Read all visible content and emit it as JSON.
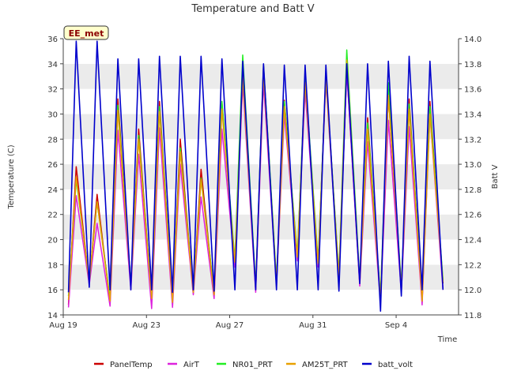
{
  "chart_data": {
    "type": "line",
    "title": "Temperature and Batt V",
    "station_tag": "EE_met",
    "xlabel": "Time",
    "ylabel_left": "Temperature (C)",
    "ylabel_right": "Batt V",
    "xlim": [
      "2023-08-19",
      "2023-09-07"
    ],
    "ylim_left": [
      14,
      36
    ],
    "ylim_right": [
      11.8,
      14.0
    ],
    "x_ticks": [
      {
        "date": "2023-08-19",
        "label": "Aug 19"
      },
      {
        "date": "2023-08-23",
        "label": "Aug 23"
      },
      {
        "date": "2023-08-27",
        "label": "Aug 27"
      },
      {
        "date": "2023-08-31",
        "label": "Aug 31"
      },
      {
        "date": "2023-09-04",
        "label": "Sep 4"
      }
    ],
    "y_ticks_left": [
      14,
      16,
      18,
      20,
      22,
      24,
      26,
      28,
      30,
      32,
      34,
      36
    ],
    "y_ticks_right": [
      "11.8",
      "12.0",
      "12.2",
      "12.4",
      "12.6",
      "12.8",
      "13.0",
      "13.2",
      "13.4",
      "13.6",
      "13.8",
      "14.0"
    ],
    "grid": "horizontal bands",
    "legend_position": "bottom",
    "series": [
      {
        "name": "PanelTemp",
        "color": "#cc0000",
        "axis": "left",
        "x": [
          "2023-08-19 06:00",
          "2023-08-19 15:00",
          "2023-08-20 06:00",
          "2023-08-20 15:00",
          "2023-08-21 06:00",
          "2023-08-21 15:00",
          "2023-08-22 06:00",
          "2023-08-22 15:00",
          "2023-08-23 06:00",
          "2023-08-23 15:00",
          "2023-08-24 06:00",
          "2023-08-24 15:00",
          "2023-08-25 06:00",
          "2023-08-25 15:00",
          "2023-08-26 06:00",
          "2023-08-26 15:00",
          "2023-08-27 06:00",
          "2023-08-27 15:00",
          "2023-08-28 06:00",
          "2023-08-28 15:00",
          "2023-08-29 06:00",
          "2023-08-29 15:00",
          "2023-08-30 06:00",
          "2023-08-30 15:00",
          "2023-08-31 06:00",
          "2023-08-31 15:00",
          "2023-09-01 06:00",
          "2023-09-01 15:00",
          "2023-09-02 06:00",
          "2023-09-02 15:00",
          "2023-09-03 06:00",
          "2023-09-03 15:00",
          "2023-09-04 06:00",
          "2023-09-04 15:00",
          "2023-09-05 06:00",
          "2023-09-05 15:00",
          "2023-09-06 06:00"
        ],
        "y": [
          14.8,
          25.8,
          16.5,
          23.6,
          15.0,
          31.2,
          16.3,
          28.8,
          15.2,
          31.0,
          15.0,
          28.0,
          15.7,
          25.6,
          15.5,
          30.9,
          18.0,
          33.9,
          16.0,
          33.8,
          16.5,
          31.1,
          18.5,
          32.8,
          18.0,
          33.1,
          17.0,
          33.5,
          16.5,
          29.7,
          15.2,
          31.5,
          16.0,
          31.2,
          15.0,
          31.0,
          16.5
        ]
      },
      {
        "name": "AirT",
        "color": "#dd22dd",
        "axis": "left",
        "x": [
          "2023-08-19 06:00",
          "2023-08-19 15:00",
          "2023-08-20 06:00",
          "2023-08-20 15:00",
          "2023-08-21 06:00",
          "2023-08-21 15:00",
          "2023-08-22 06:00",
          "2023-08-22 15:00",
          "2023-08-23 06:00",
          "2023-08-23 15:00",
          "2023-08-24 06:00",
          "2023-08-24 15:00",
          "2023-08-25 06:00",
          "2023-08-25 15:00",
          "2023-08-26 06:00",
          "2023-08-26 15:00",
          "2023-08-27 06:00",
          "2023-08-27 15:00",
          "2023-08-28 06:00",
          "2023-08-28 15:00",
          "2023-08-29 06:00",
          "2023-08-29 15:00",
          "2023-08-30 06:00",
          "2023-08-30 15:00",
          "2023-08-31 06:00",
          "2023-08-31 15:00",
          "2023-09-01 06:00",
          "2023-09-01 15:00",
          "2023-09-02 06:00",
          "2023-09-02 15:00",
          "2023-09-03 06:00",
          "2023-09-03 15:00",
          "2023-09-04 06:00",
          "2023-09-04 15:00",
          "2023-09-05 06:00",
          "2023-09-05 15:00",
          "2023-09-06 06:00"
        ],
        "y": [
          14.6,
          23.5,
          16.4,
          21.3,
          14.7,
          28.7,
          16.0,
          26.8,
          14.5,
          28.9,
          14.6,
          26.0,
          15.6,
          23.4,
          15.3,
          28.8,
          17.8,
          32.4,
          15.8,
          32.5,
          16.3,
          30.0,
          18.3,
          31.8,
          17.8,
          32.6,
          16.8,
          33.4,
          16.3,
          27.8,
          15.0,
          29.5,
          15.8,
          29.0,
          14.8,
          30.0,
          16.0
        ]
      },
      {
        "name": "NR01_PRT",
        "color": "#22ee22",
        "axis": "left",
        "x": [
          "2023-08-19 06:00",
          "2023-08-19 15:00",
          "2023-08-20 06:00",
          "2023-08-20 15:00",
          "2023-08-21 06:00",
          "2023-08-21 15:00",
          "2023-08-22 06:00",
          "2023-08-22 15:00",
          "2023-08-23 06:00",
          "2023-08-23 15:00",
          "2023-08-24 06:00",
          "2023-08-24 15:00",
          "2023-08-25 06:00",
          "2023-08-25 15:00",
          "2023-08-26 06:00",
          "2023-08-26 15:00",
          "2023-08-27 06:00",
          "2023-08-27 15:00",
          "2023-08-28 06:00",
          "2023-08-28 15:00",
          "2023-08-29 06:00",
          "2023-08-29 15:00",
          "2023-08-30 06:00",
          "2023-08-30 15:00",
          "2023-08-31 06:00",
          "2023-08-31 15:00",
          "2023-09-01 06:00",
          "2023-09-01 15:00",
          "2023-09-02 06:00",
          "2023-09-02 15:00",
          "2023-09-03 06:00",
          "2023-09-03 15:00",
          "2023-09-04 06:00",
          "2023-09-04 15:00",
          "2023-09-05 06:00",
          "2023-09-05 15:00",
          "2023-09-06 06:00"
        ],
        "y": [
          15.5,
          24.8,
          16.7,
          23.0,
          15.3,
          30.7,
          16.5,
          28.3,
          15.4,
          30.6,
          15.2,
          27.3,
          15.9,
          24.9,
          15.8,
          31.0,
          18.4,
          34.7,
          16.3,
          33.9,
          16.8,
          31.0,
          18.8,
          33.0,
          18.3,
          33.0,
          17.3,
          35.1,
          16.8,
          29.3,
          15.5,
          32.5,
          16.3,
          30.8,
          15.3,
          30.6,
          16.8
        ]
      },
      {
        "name": "AM25T_PRT",
        "color": "#e8a000",
        "axis": "left",
        "x": [
          "2023-08-19 06:00",
          "2023-08-19 15:00",
          "2023-08-20 06:00",
          "2023-08-20 15:00",
          "2023-08-21 06:00",
          "2023-08-21 15:00",
          "2023-08-22 06:00",
          "2023-08-22 15:00",
          "2023-08-23 06:00",
          "2023-08-23 15:00",
          "2023-08-24 06:00",
          "2023-08-24 15:00",
          "2023-08-25 06:00",
          "2023-08-25 15:00",
          "2023-08-26 06:00",
          "2023-08-26 15:00",
          "2023-08-27 06:00",
          "2023-08-27 15:00",
          "2023-08-28 06:00",
          "2023-08-28 15:00",
          "2023-08-29 06:00",
          "2023-08-29 15:00",
          "2023-08-30 06:00",
          "2023-08-30 15:00",
          "2023-08-31 06:00",
          "2023-08-31 15:00",
          "2023-09-01 06:00",
          "2023-09-01 15:00",
          "2023-09-02 06:00",
          "2023-09-02 15:00",
          "2023-09-03 06:00",
          "2023-09-03 15:00",
          "2023-09-04 06:00",
          "2023-09-04 15:00",
          "2023-09-05 06:00",
          "2023-09-05 15:00",
          "2023-09-06 06:00"
        ],
        "y": [
          15.2,
          25.0,
          16.6,
          23.0,
          15.1,
          30.3,
          16.4,
          28.0,
          15.3,
          30.2,
          15.0,
          27.0,
          15.8,
          24.8,
          15.6,
          30.4,
          18.2,
          33.0,
          16.2,
          33.3,
          16.6,
          30.6,
          18.6,
          32.5,
          18.1,
          32.8,
          17.1,
          34.3,
          16.6,
          28.8,
          15.3,
          31.5,
          16.2,
          30.4,
          15.1,
          30.0,
          16.6
        ]
      },
      {
        "name": "batt_volt",
        "color": "#0000cc",
        "axis": "right",
        "x": [
          "2023-08-19 06:00",
          "2023-08-19 15:00",
          "2023-08-20 06:00",
          "2023-08-20 15:00",
          "2023-08-21 06:00",
          "2023-08-21 15:00",
          "2023-08-22 06:00",
          "2023-08-22 15:00",
          "2023-08-23 06:00",
          "2023-08-23 15:00",
          "2023-08-24 06:00",
          "2023-08-24 15:00",
          "2023-08-25 06:00",
          "2023-08-25 15:00",
          "2023-08-26 06:00",
          "2023-08-26 15:00",
          "2023-08-27 06:00",
          "2023-08-27 15:00",
          "2023-08-28 06:00",
          "2023-08-28 15:00",
          "2023-08-29 06:00",
          "2023-08-29 15:00",
          "2023-08-30 06:00",
          "2023-08-30 15:00",
          "2023-08-31 06:00",
          "2023-08-31 15:00",
          "2023-09-01 06:00",
          "2023-09-01 15:00",
          "2023-09-02 06:00",
          "2023-09-02 15:00",
          "2023-09-03 06:00",
          "2023-09-03 15:00",
          "2023-09-04 06:00",
          "2023-09-04 15:00",
          "2023-09-05 06:00",
          "2023-09-05 15:00",
          "2023-09-06 06:00"
        ],
        "y": [
          11.98,
          13.98,
          12.02,
          13.98,
          12.0,
          13.84,
          12.0,
          13.84,
          12.0,
          13.86,
          11.98,
          13.86,
          12.0,
          13.86,
          11.99,
          13.84,
          12.0,
          13.82,
          12.0,
          13.8,
          12.0,
          13.79,
          12.0,
          13.79,
          12.0,
          13.79,
          11.99,
          13.8,
          12.05,
          13.8,
          11.83,
          13.82,
          11.95,
          13.86,
          12.0,
          13.82,
          12.0
        ]
      }
    ]
  }
}
